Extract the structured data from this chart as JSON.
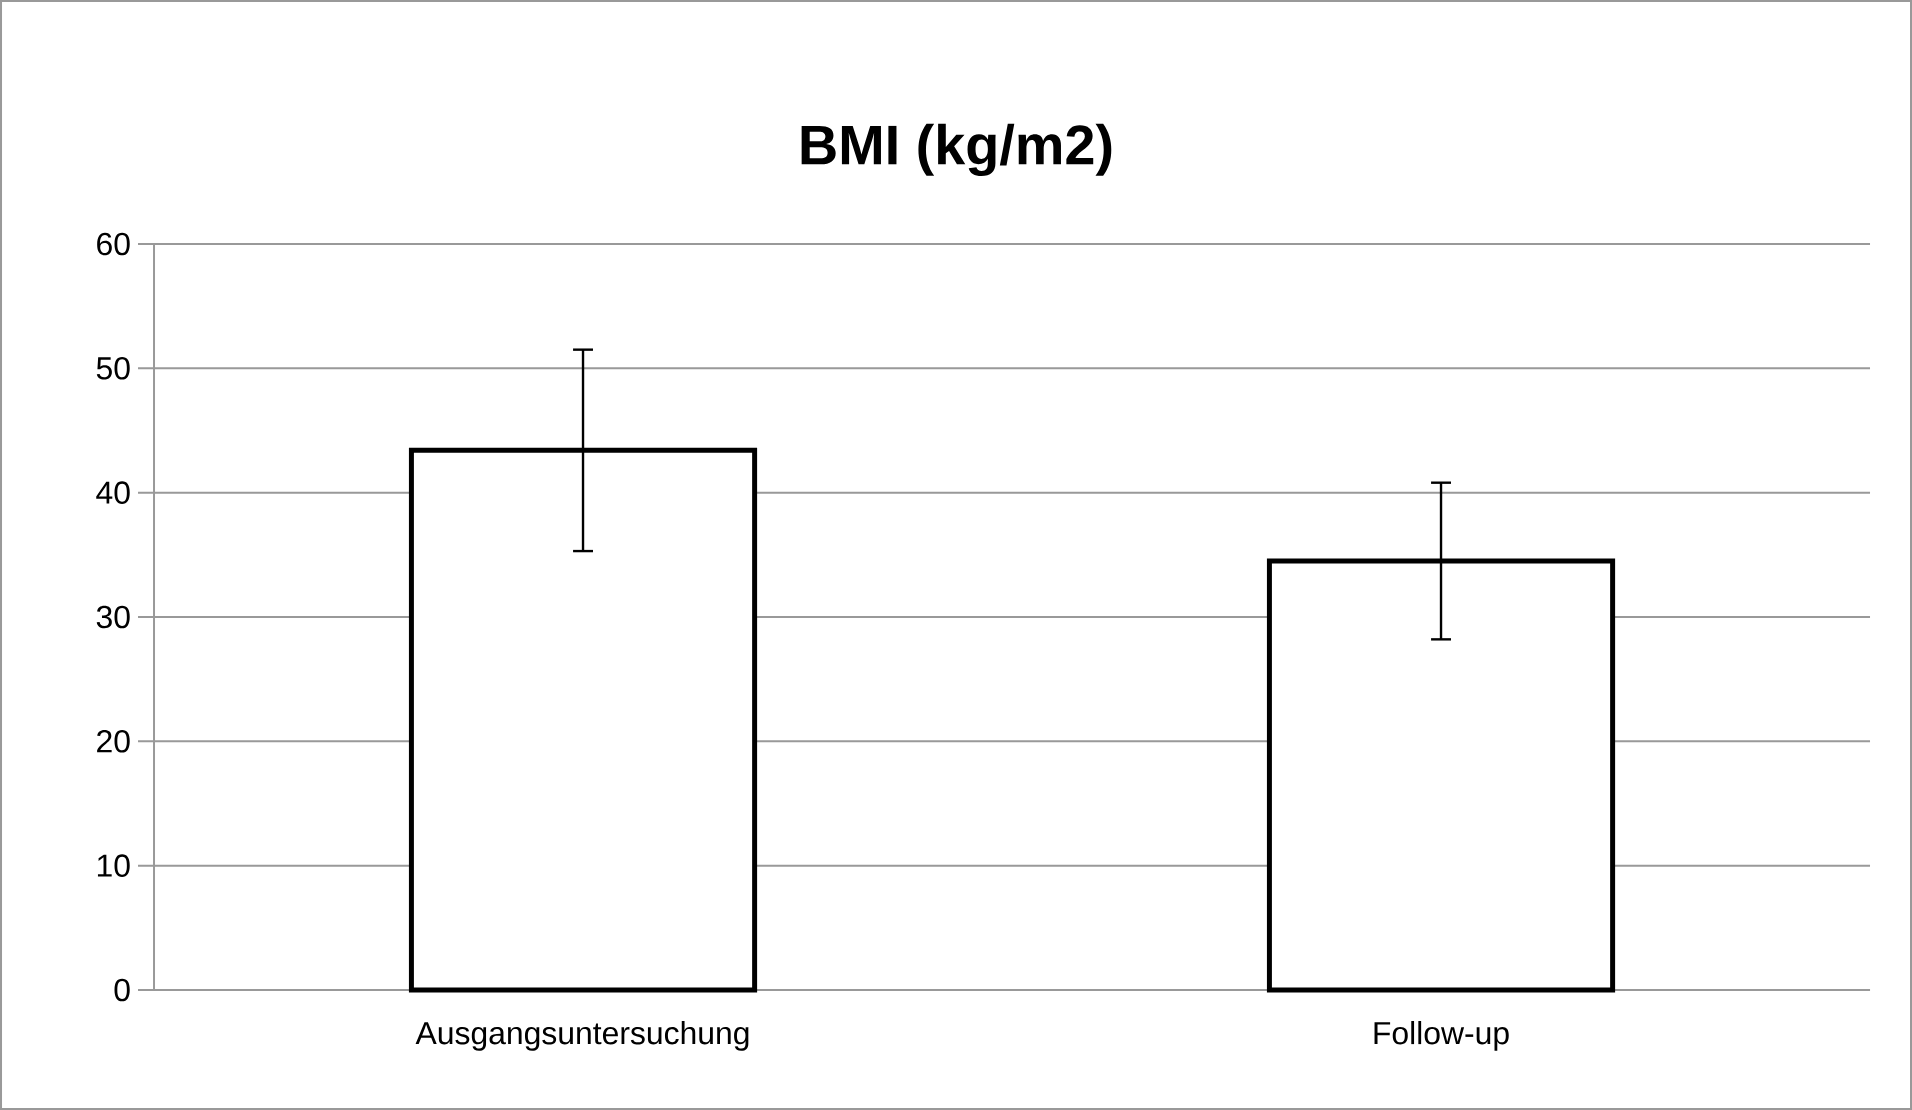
{
  "chart_data": {
    "type": "bar",
    "title": "BMI (kg/m2)",
    "categories": [
      "Ausgangsuntersuchung",
      "Follow-up"
    ],
    "values": [
      43.4,
      34.5
    ],
    "errors": [
      8.1,
      6.3
    ],
    "color": "#ffffff",
    "ylim": [
      0,
      60
    ],
    "yticks": [
      0,
      10,
      20,
      30,
      40,
      50,
      60
    ],
    "grid": "y"
  }
}
